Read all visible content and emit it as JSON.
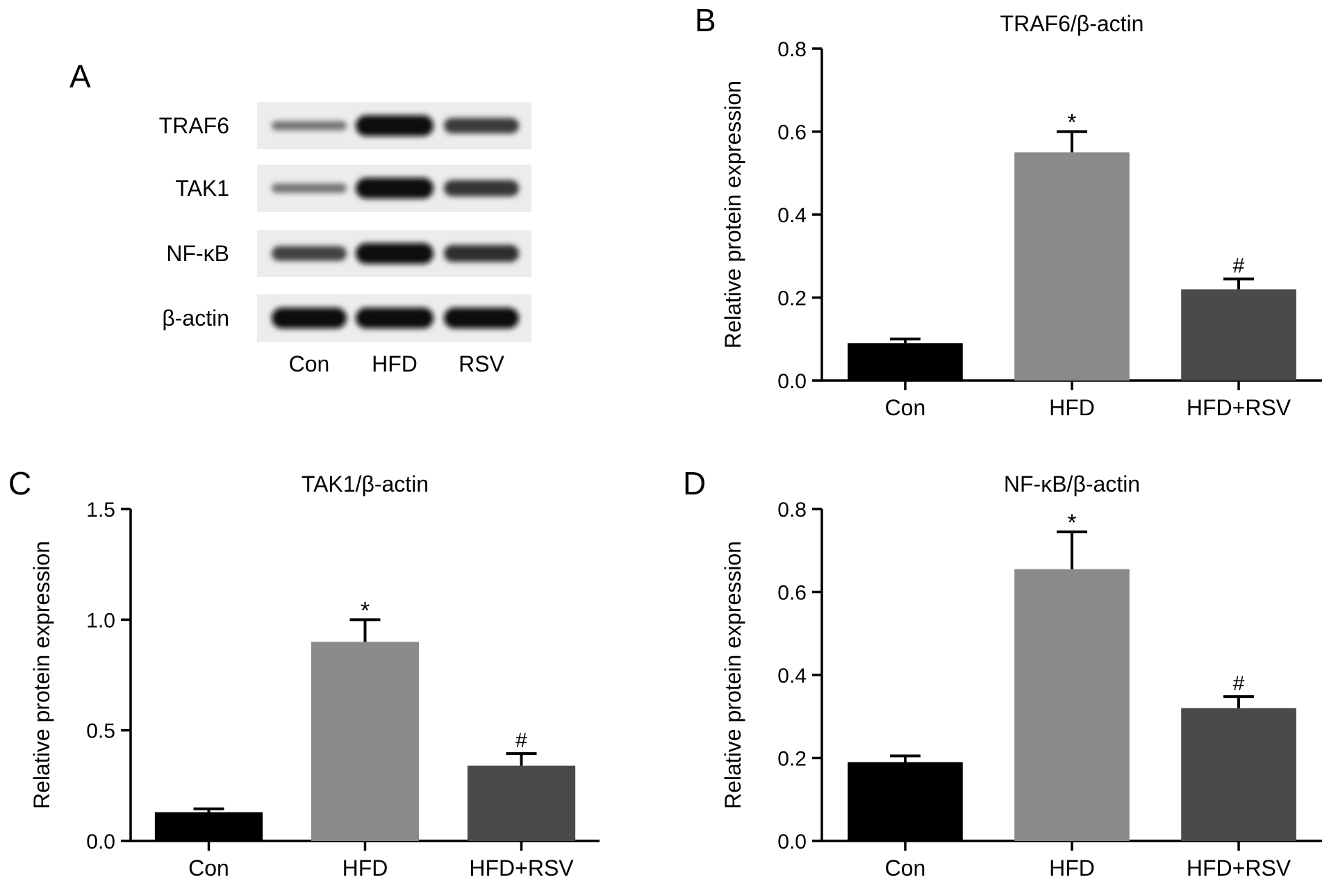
{
  "panel_a": {
    "letter": "A",
    "rows": [
      {
        "label": "TRAF6",
        "intensity": [
          0.25,
          1.0,
          0.65
        ]
      },
      {
        "label": "TAK1",
        "intensity": [
          0.25,
          1.0,
          0.7
        ]
      },
      {
        "label": "NF-κB",
        "intensity": [
          0.6,
          1.0,
          0.75
        ]
      },
      {
        "label": "β-actin",
        "intensity": [
          1.0,
          1.0,
          1.0
        ]
      }
    ],
    "lanes": [
      "Con",
      "HFD",
      "RSV"
    ]
  },
  "chart_data": [
    {
      "panel": "B",
      "type": "bar",
      "title": "TRAF6/β-actin",
      "xlabel": "",
      "ylabel": "Relative protein expression",
      "categories": [
        "Con",
        "HFD",
        "HFD+RSV"
      ],
      "values": [
        0.09,
        0.55,
        0.22
      ],
      "errors": [
        0.01,
        0.05,
        0.025
      ],
      "annotations": [
        "",
        "*",
        "#"
      ],
      "ylim": [
        0,
        0.8
      ],
      "yticks": [
        "0.0",
        "0.2",
        "0.4",
        "0.6",
        "0.8"
      ],
      "colors": [
        "#000000",
        "#8a8a8a",
        "#4a4a4a"
      ]
    },
    {
      "panel": "C",
      "type": "bar",
      "title": "TAK1/β-actin",
      "xlabel": "",
      "ylabel": "Relative protein expression",
      "categories": [
        "Con",
        "HFD",
        "HFD+RSV"
      ],
      "values": [
        0.13,
        0.9,
        0.34
      ],
      "errors": [
        0.015,
        0.1,
        0.055
      ],
      "annotations": [
        "",
        "*",
        "#"
      ],
      "ylim": [
        0,
        1.5
      ],
      "yticks": [
        "0.0",
        "0.5",
        "1.0",
        "1.5"
      ],
      "colors": [
        "#000000",
        "#8a8a8a",
        "#4a4a4a"
      ]
    },
    {
      "panel": "D",
      "type": "bar",
      "title": "NF-κB/β-actin",
      "xlabel": "",
      "ylabel": "Relative protein expression",
      "categories": [
        "Con",
        "HFD",
        "HFD+RSV"
      ],
      "values": [
        0.19,
        0.655,
        0.32
      ],
      "errors": [
        0.015,
        0.09,
        0.028
      ],
      "annotations": [
        "",
        "*",
        "#"
      ],
      "ylim": [
        0,
        0.8
      ],
      "yticks": [
        "0.0",
        "0.2",
        "0.4",
        "0.6",
        "0.8"
      ],
      "colors": [
        "#000000",
        "#8a8a8a",
        "#4a4a4a"
      ]
    }
  ]
}
